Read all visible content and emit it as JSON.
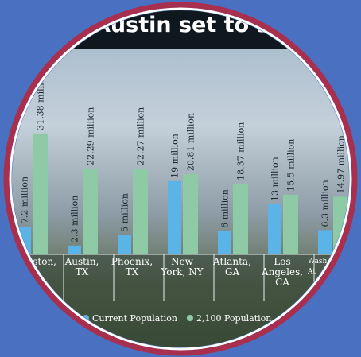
{
  "chart_data": {
    "type": "bar",
    "title": "Austin set to see p",
    "categories": [
      "ston,",
      "Austin, TX",
      "Phoenix, TX",
      "New York, NY",
      "Atlanta, GA",
      "Los Angeles, CA",
      "Wash At"
    ],
    "series": [
      {
        "name": "Current Population",
        "color": "#5ab4e8",
        "values": [
          7.2,
          2.3,
          5,
          19,
          6,
          13,
          6.3
        ],
        "value_labels": [
          "7.2 million",
          "2.3 million",
          "5 million",
          "19 million",
          "6 million",
          "13 million",
          "6.3 million"
        ]
      },
      {
        "name": "2,100 Population",
        "color": "#8fcaa6",
        "values": [
          31.38,
          22.29,
          22.27,
          20.81,
          18.37,
          15.5,
          14.97
        ],
        "value_labels": [
          "31.38 million",
          "22.29 million",
          "22.27 million",
          "20.81 million",
          "18.37 million",
          "15.5 million",
          "14.97 million"
        ]
      }
    ],
    "ylim": [
      0,
      50
    ]
  }
}
